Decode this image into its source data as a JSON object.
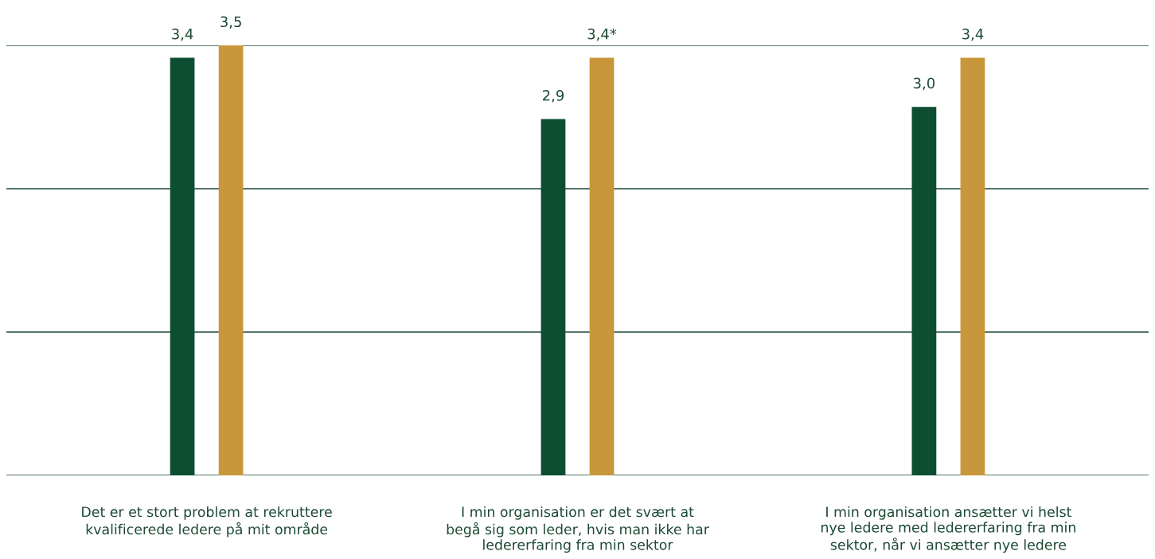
{
  "chart_data": {
    "type": "bar",
    "categories": [
      "Det er et stort problem at rekruttere\nkvalificerede ledere på mit område",
      "I min organisation er det svært at\nbegå sig som leder, hvis man ikke har\nledererfaring fra min sektor",
      "I min organisation ansætter vi helst\nnye ledere med ledererfaring fra min\nsektor, når vi ansætter nye ledere"
    ],
    "series": [
      {
        "color": "#0d4d31",
        "values": [
          3.4,
          2.9,
          3.0
        ],
        "value_labels": [
          "3,4",
          "2,9",
          "3,0"
        ]
      },
      {
        "color": "#c9973b",
        "values": [
          3.5,
          3.4,
          3.4
        ],
        "value_labels": [
          "3,5",
          "3,4*",
          "3,4"
        ]
      }
    ],
    "ylim": [
      0,
      3.5
    ],
    "yticks": [
      {
        "value": 0,
        "label": null
      },
      {
        "value": 1.1667,
        "label": null
      },
      {
        "value": 2.3333,
        "label": null
      },
      {
        "value": 3.5,
        "label": null
      }
    ],
    "grid": "y",
    "tick_labels": "x"
  }
}
